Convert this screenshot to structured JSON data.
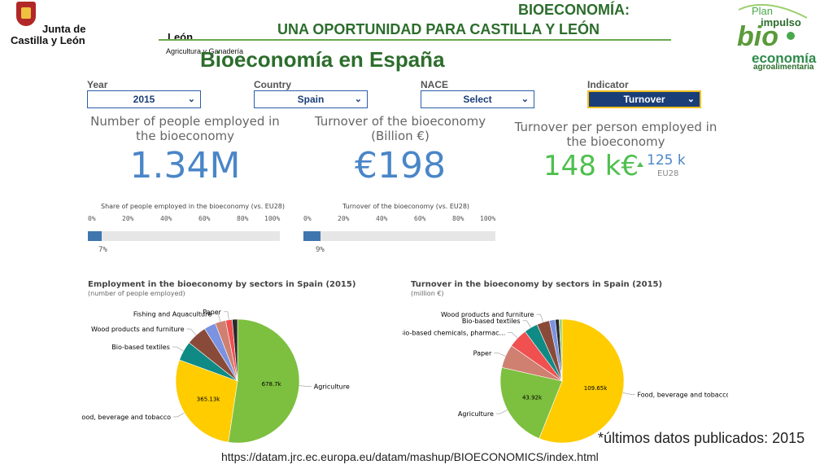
{
  "header": {
    "logo_line1": "Junta de",
    "logo_line2": "Castilla y León",
    "leon_fragment": "León",
    "agri_fragment": "Agricultura y Ganadería",
    "title_line1": "BIOECONOMÍA:",
    "title_line2": "UNA OPORTUNIDAD PARA CASTILLA Y LEÓN",
    "slide_title": "Bioeconomía en España",
    "plan_logo": {
      "plan": "Plan",
      "impulso": "impulso",
      "bio": "bio",
      "economia": "economía",
      "agro": "agroalimentaria"
    }
  },
  "filters": {
    "year": {
      "label": "Year",
      "value": "2015"
    },
    "country": {
      "label": "Country",
      "value": "Spain"
    },
    "nace": {
      "label": "NACE",
      "value": "Select"
    },
    "indicator": {
      "label": "Indicator",
      "value": "Turnover"
    }
  },
  "kpis": {
    "employed": {
      "label": "Number of people employed in the bioeconomy",
      "value": "1.34M"
    },
    "turnover": {
      "label": "Turnover of the bioeconomy (Billion €)",
      "value": "€198"
    },
    "per_person": {
      "label": "Turnover per person employed in the bioeconomy",
      "value": "148 k€",
      "ref_value": "125 k",
      "ref_label": "EU28",
      "trend_icon": "triangle-up-icon"
    }
  },
  "shares": {
    "ticks": [
      "0%",
      "20%",
      "40%",
      "60%",
      "80%",
      "100%"
    ],
    "employment": {
      "title": "Share of people employed in the bioeconomy (vs. EU28)",
      "value_label": "7%",
      "fraction": 0.07
    },
    "turnover": {
      "title": "Turnover of the bioeconomy (vs. EU28)",
      "value_label": "9%",
      "fraction": 0.09
    }
  },
  "colors": {
    "accent_blue": "#4a86c8",
    "green": "#4ec04e",
    "header_green": "#2c6d2c",
    "dark_select": "#1a3e78"
  },
  "chart_data": [
    {
      "type": "pie",
      "title": "Employment in the bioeconomy by sectors in Spain (2015)",
      "subtitle": "(number of people employed)",
      "slices": [
        {
          "label": "Agriculture",
          "value": 678.7,
          "value_label": "678.7k",
          "color": "#7dbf3f"
        },
        {
          "label": "Food, beverage and tobacco",
          "value": 365.13,
          "value_label": "365.13k",
          "color": "#ffcc00"
        },
        {
          "label": "Bio-based textiles",
          "value": 66,
          "value_label": "",
          "color": "#0f8a84"
        },
        {
          "label": "Wood products and furniture",
          "value": 70,
          "value_label": "",
          "color": "#8a4a3a"
        },
        {
          "label": "",
          "value": 40,
          "value_label": "",
          "color": "#7a92e0"
        },
        {
          "label": "Fishing and Aquaculture",
          "value": 36,
          "value_label": "",
          "color": "#d08070"
        },
        {
          "label": "Paper",
          "value": 22,
          "value_label": "",
          "color": "#f05050"
        },
        {
          "label": "",
          "value": 18,
          "value_label": "",
          "color": "#2a2a2a"
        }
      ]
    },
    {
      "type": "pie",
      "title": "Turnover in the bioeconomy by sectors in Spain (2015)",
      "subtitle": "(million €)",
      "slices": [
        {
          "label": "Food, beverage and tobacco",
          "value": 109.65,
          "value_label": "109.65k",
          "color": "#ffcc00"
        },
        {
          "label": "Agriculture",
          "value": 43.92,
          "value_label": "43.92k",
          "color": "#7dbf3f"
        },
        {
          "label": "Paper",
          "value": 12,
          "value_label": "",
          "color": "#d08070"
        },
        {
          "label": "Bio-based chemicals, pharmac...",
          "value": 10,
          "value_label": "",
          "color": "#f05050"
        },
        {
          "label": "Bio-based textiles",
          "value": 7,
          "value_label": "",
          "color": "#0f8a84"
        },
        {
          "label": "Wood products and furniture",
          "value": 6.5,
          "value_label": "",
          "color": "#8a4a3a"
        },
        {
          "label": "",
          "value": 3,
          "value_label": "",
          "color": "#7a92e0"
        },
        {
          "label": "",
          "value": 2,
          "value_label": "",
          "color": "#2a2a2a"
        },
        {
          "label": "",
          "value": 1.5,
          "value_label": "",
          "color": "#a0d070"
        }
      ]
    }
  ],
  "footer": {
    "note": "*últimos datos publicados: 2015",
    "url": "https://datam.jrc.ec.europa.eu/datam/mashup/BIOECONOMICS/index.html"
  }
}
